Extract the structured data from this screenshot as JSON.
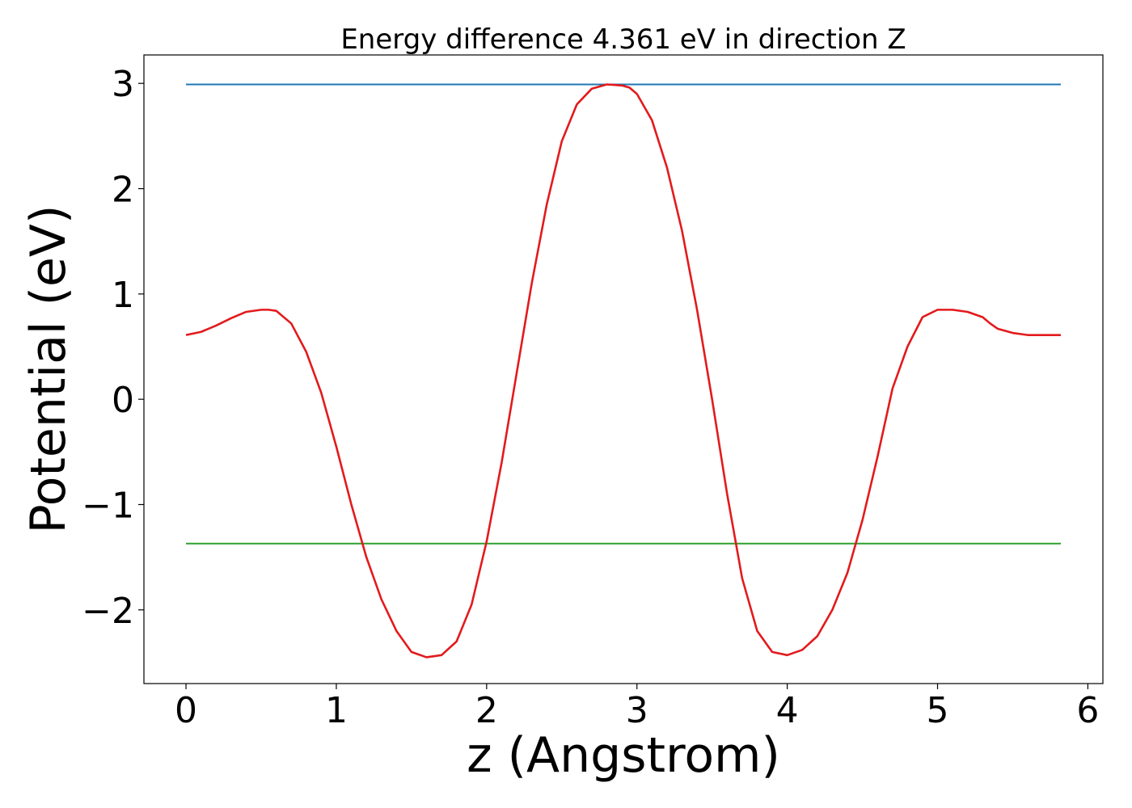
{
  "chart_data": {
    "type": "line",
    "title": "Energy difference 4.361 eV in direction Z",
    "xlabel": "z (Angstrom)",
    "ylabel": "Potential (eV)",
    "xlim": [
      -0.28,
      6.1
    ],
    "ylim": [
      -2.7,
      3.27
    ],
    "grid": false,
    "xticks": [
      0,
      1,
      2,
      3,
      4,
      5,
      6
    ],
    "xtick_labels": [
      "0",
      "1",
      "2",
      "3",
      "4",
      "5",
      "6"
    ],
    "yticks": [
      -2,
      -1,
      0,
      1,
      2,
      3
    ],
    "ytick_labels": [
      "−2",
      "−1",
      "0",
      "1",
      "2",
      "3"
    ],
    "colors": {
      "potential": "#e31a1c",
      "upper_level": "#1f77b4",
      "lower_level": "#2ca02c"
    },
    "series": [
      {
        "x": [
          0.0,
          0.1,
          0.2,
          0.3,
          0.4,
          0.5,
          0.55,
          0.6,
          0.7,
          0.8,
          0.9,
          1.0,
          1.1,
          1.2,
          1.3,
          1.4,
          1.5,
          1.6,
          1.7,
          1.8,
          1.9,
          2.0,
          2.1,
          2.2,
          2.3,
          2.4,
          2.5,
          2.6,
          2.7,
          2.8,
          2.9,
          2.95,
          3.0,
          3.1,
          3.2,
          3.3,
          3.4,
          3.5,
          3.6,
          3.7,
          3.8,
          3.9,
          4.0,
          4.1,
          4.2,
          4.3,
          4.4,
          4.5,
          4.6,
          4.7,
          4.8,
          4.9,
          5.0,
          5.1,
          5.2,
          5.3,
          5.35,
          5.4,
          5.5,
          5.6,
          5.7,
          5.82
        ],
        "y": [
          0.61,
          0.64,
          0.7,
          0.77,
          0.83,
          0.85,
          0.85,
          0.84,
          0.72,
          0.45,
          0.06,
          -0.45,
          -1.0,
          -1.5,
          -1.9,
          -2.2,
          -2.4,
          -2.45,
          -2.43,
          -2.3,
          -1.95,
          -1.35,
          -0.6,
          0.25,
          1.1,
          1.85,
          2.45,
          2.8,
          2.95,
          2.99,
          2.98,
          2.96,
          2.9,
          2.65,
          2.2,
          1.6,
          0.85,
          0.0,
          -0.9,
          -1.7,
          -2.2,
          -2.4,
          -2.43,
          -2.38,
          -2.25,
          -2.0,
          -1.65,
          -1.15,
          -0.55,
          0.1,
          0.5,
          0.78,
          0.85,
          0.85,
          0.83,
          0.78,
          0.72,
          0.67,
          0.63,
          0.61,
          0.61,
          0.61
        ]
      },
      {
        "x": [
          0,
          5.82
        ],
        "y": [
          2.99,
          2.99
        ]
      },
      {
        "x": [
          0,
          5.82
        ],
        "y": [
          -1.371,
          -1.371
        ]
      }
    ]
  }
}
